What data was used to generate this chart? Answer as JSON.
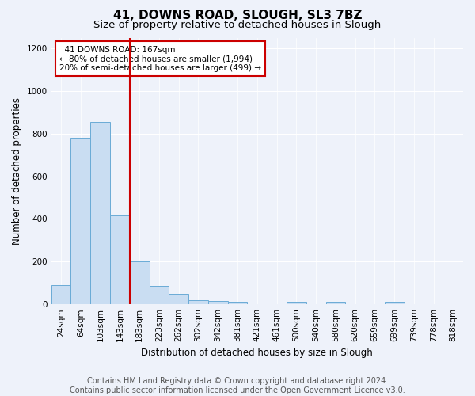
{
  "title_line1": "41, DOWNS ROAD, SLOUGH, SL3 7BZ",
  "title_line2": "Size of property relative to detached houses in Slough",
  "xlabel": "Distribution of detached houses by size in Slough",
  "ylabel": "Number of detached properties",
  "categories": [
    "24sqm",
    "64sqm",
    "103sqm",
    "143sqm",
    "183sqm",
    "223sqm",
    "262sqm",
    "302sqm",
    "342sqm",
    "381sqm",
    "421sqm",
    "461sqm",
    "500sqm",
    "540sqm",
    "580sqm",
    "620sqm",
    "659sqm",
    "699sqm",
    "739sqm",
    "778sqm",
    "818sqm"
  ],
  "values": [
    90,
    780,
    855,
    415,
    200,
    85,
    50,
    20,
    15,
    10,
    0,
    0,
    10,
    0,
    10,
    0,
    0,
    10,
    0,
    0,
    0
  ],
  "bar_color": "#c9ddf2",
  "bar_edge_color": "#6aabd6",
  "vline_color": "#cc0000",
  "ylim": [
    0,
    1250
  ],
  "yticks": [
    0,
    200,
    400,
    600,
    800,
    1000,
    1200
  ],
  "annotation_text": "  41 DOWNS ROAD: 167sqm  \n← 80% of detached houses are smaller (1,994)\n20% of semi-detached houses are larger (499) →",
  "annotation_box_color": "#ffffff",
  "annotation_box_edge": "#cc0000",
  "footer_text": "Contains HM Land Registry data © Crown copyright and database right 2024.\nContains public sector information licensed under the Open Government Licence v3.0.",
  "background_color": "#eef2fa",
  "grid_color": "#ffffff",
  "title_fontsize": 11,
  "subtitle_fontsize": 9.5,
  "axis_label_fontsize": 8.5,
  "tick_fontsize": 7.5,
  "footer_fontsize": 7,
  "vline_bar_index": 4
}
